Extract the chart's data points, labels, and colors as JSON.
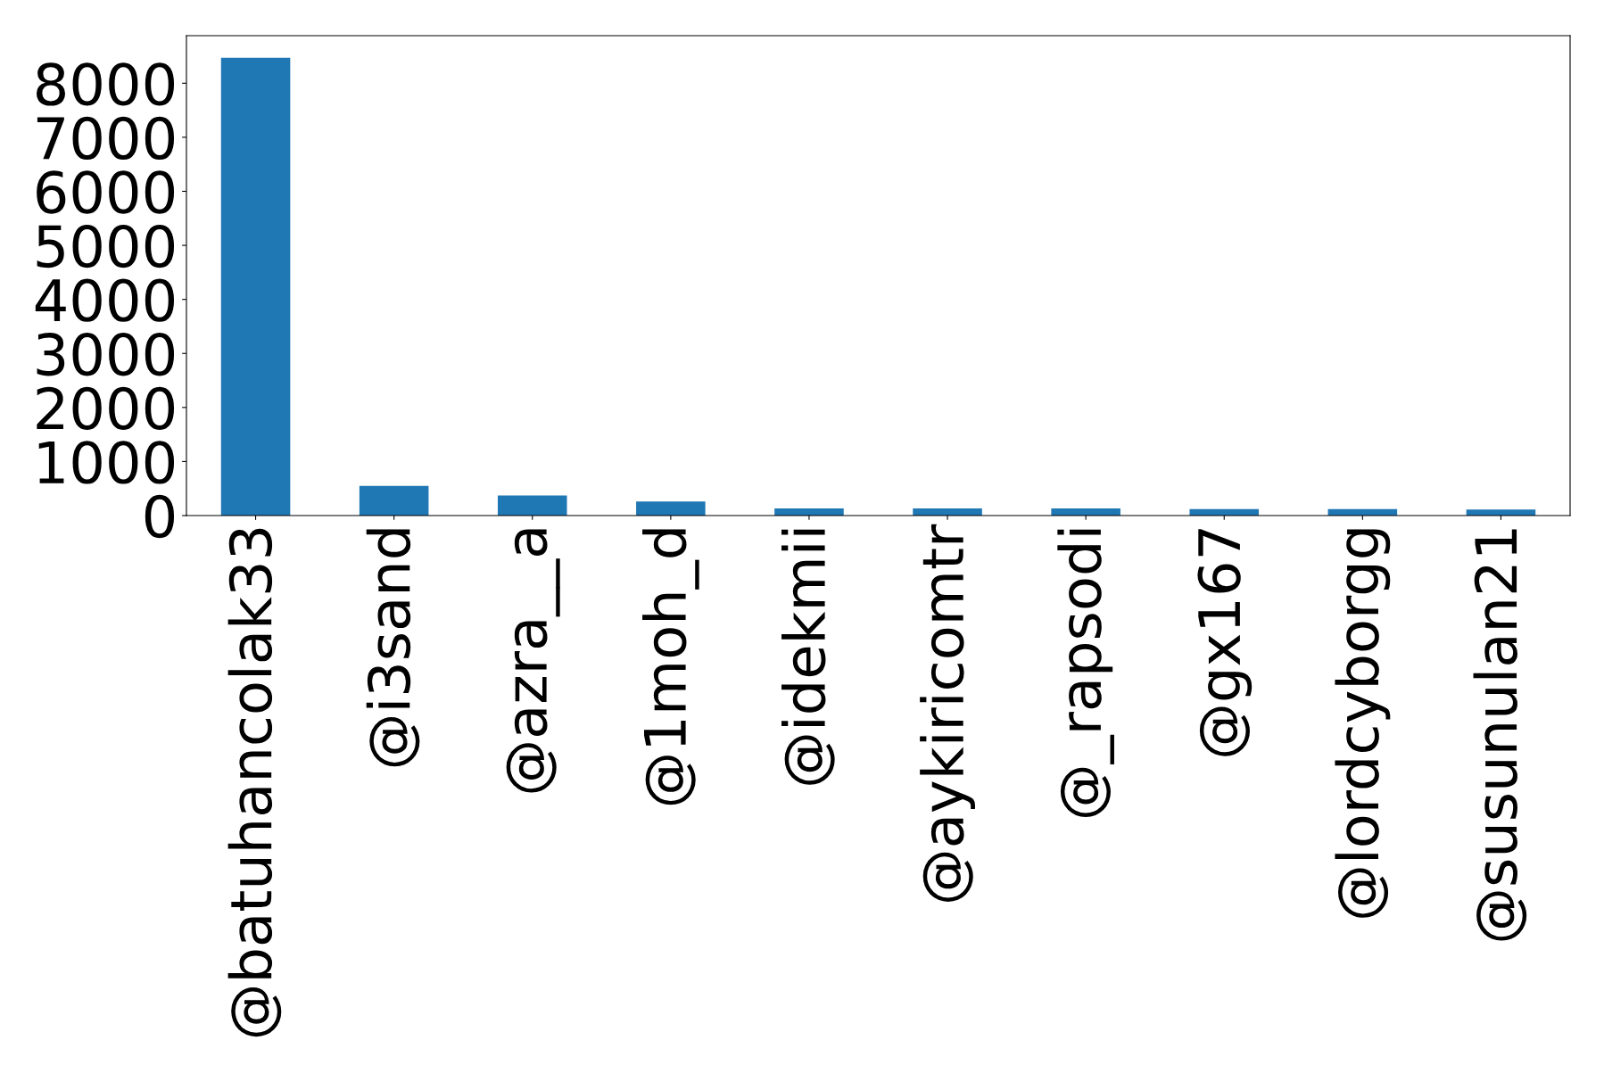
{
  "chart_data": {
    "type": "bar",
    "categories": [
      "@batuhancolak33",
      "@i3sand",
      "@azra__a",
      "@1moh_d",
      "@idekmii",
      "@aykiricomtr",
      "@_rapsodi",
      "@gx167",
      "@lordcyborgg",
      "@susunulan21"
    ],
    "values": [
      8470,
      550,
      370,
      260,
      130,
      130,
      130,
      120,
      120,
      110
    ],
    "color": "#1f77b4",
    "ylim": [
      0,
      8880
    ],
    "yticks": [
      0,
      1000,
      2000,
      3000,
      4000,
      5000,
      6000,
      7000,
      8000
    ],
    "grid": false,
    "legend": false
  }
}
